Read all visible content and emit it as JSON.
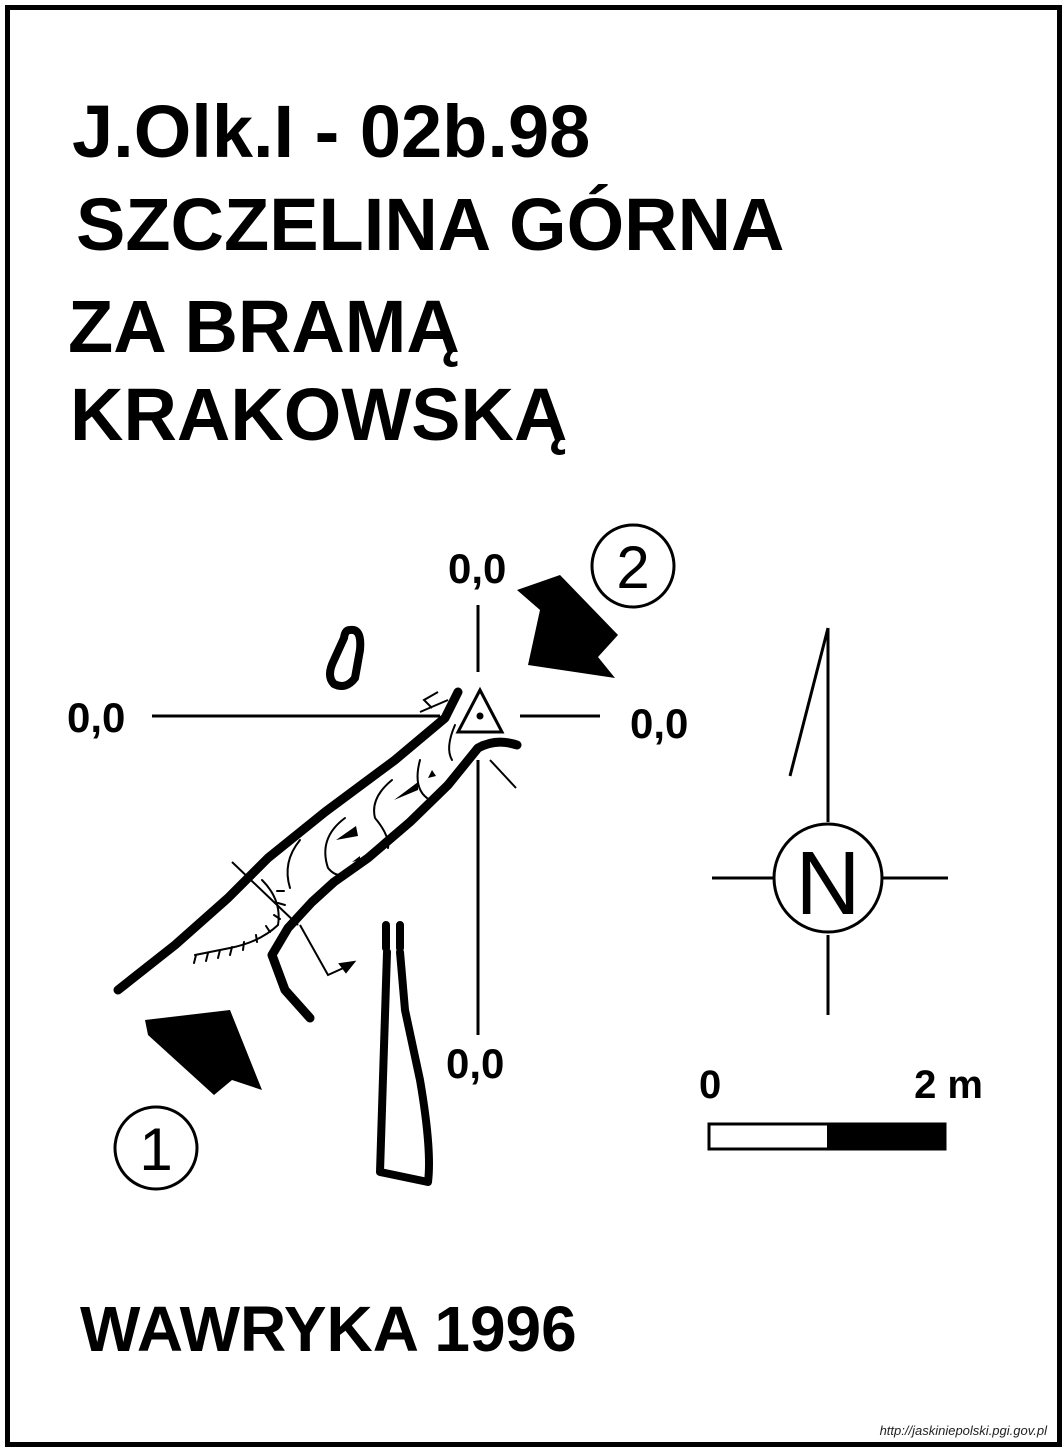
{
  "title": {
    "code": "J.Olk.I - 02b.98",
    "line1": "SZCZELINA GÓRNA",
    "line2": "ZA BRAMĄ",
    "line3": "KRAKOWSKĄ"
  },
  "survey": {
    "datum_labels": {
      "top": "0,0",
      "left": "0,0",
      "right": "0,0",
      "bottom": "0,0"
    },
    "entrances": [
      {
        "number": "1"
      },
      {
        "number": "2"
      }
    ]
  },
  "compass": {
    "north_label": "N"
  },
  "scale_bar": {
    "start_label": "0",
    "end_label": "2 m"
  },
  "author_year": "WAWRYKA 1996",
  "source_url": "http://jaskiniepolski.pgi.gov.pl",
  "colors": {
    "ink": "#000000",
    "paper": "#ffffff"
  }
}
